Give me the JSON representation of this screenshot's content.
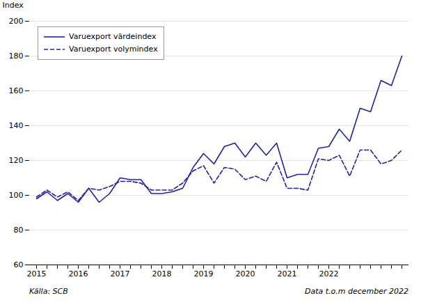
{
  "chart_data": {
    "type": "line",
    "ylabel": "Index",
    "footer": [
      "Källa: SCB",
      "Data t.o.m december 2022"
    ],
    "categories": [
      "2015",
      null,
      null,
      null,
      "2016",
      null,
      null,
      null,
      "2017",
      null,
      null,
      null,
      "2018",
      null,
      null,
      null,
      "2019",
      null,
      null,
      null,
      "2020",
      null,
      null,
      null,
      "2021",
      null,
      null,
      null,
      "2022",
      null,
      null,
      null,
      null,
      null,
      null,
      null
    ],
    "series": [
      {
        "name": "Varuexport värdeindex",
        "color": "#2020aa",
        "line_style": "solid",
        "values": [
          98,
          102,
          97,
          101,
          96,
          104,
          96,
          101,
          110,
          109,
          109,
          101,
          101,
          102,
          104,
          116,
          124,
          118,
          128,
          130,
          122,
          130,
          123,
          130,
          110,
          112,
          112,
          127,
          128,
          138,
          131,
          150,
          148,
          166,
          163,
          180
        ]
      },
      {
        "name": "Varuexport volymindex",
        "color": "#2020aa",
        "line_style": "dashed",
        "values": [
          99,
          103,
          99,
          102,
          97,
          104,
          103,
          105,
          108,
          108,
          107,
          103,
          103,
          103,
          107,
          114,
          117,
          107,
          116,
          115,
          109,
          111,
          108,
          119,
          104,
          104,
          103,
          121,
          120,
          123,
          111,
          126,
          126,
          118,
          120,
          126
        ]
      }
    ],
    "ylim": [
      60,
      200
    ],
    "yticks": [
      60,
      80,
      100,
      120,
      140,
      160,
      180,
      200
    ],
    "grid": true,
    "legend": "upper left"
  }
}
